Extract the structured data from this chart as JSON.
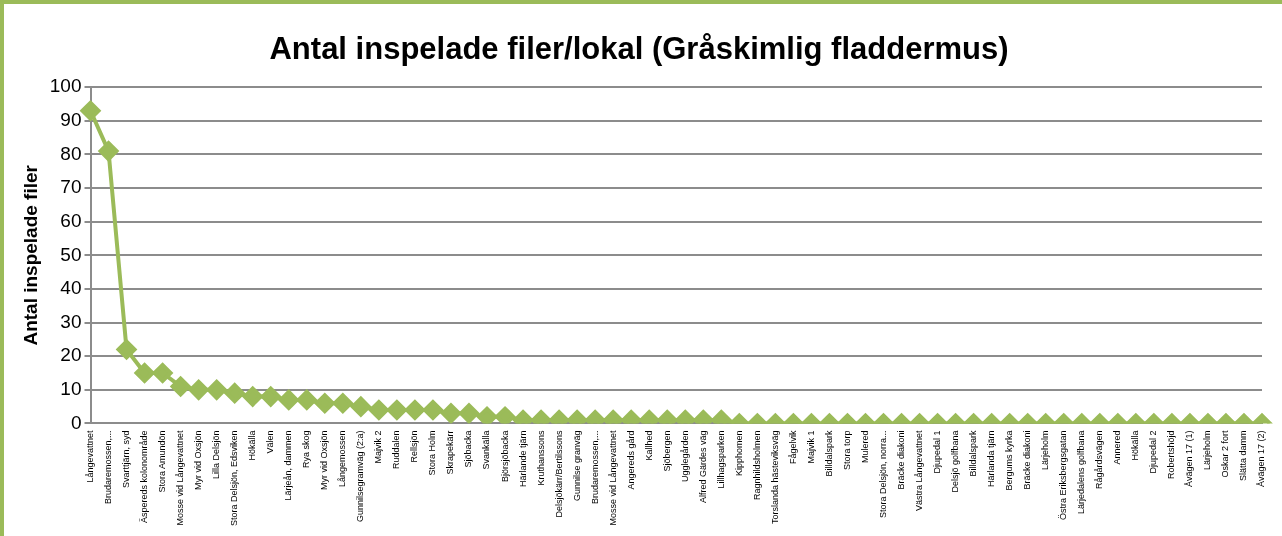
{
  "chart_data": {
    "type": "line",
    "title": "Antal inspelade filer/lokal (Gråskimlig fladdermus)",
    "ylabel": "Antal inspelade filer",
    "categories": [
      "Långevattnet",
      "Brudaremossen,...",
      "Svarttjärn, syd",
      "Äspereds kolonområde",
      "Stora Amundön",
      "Mosse vid Långevattnet",
      "Myr vid Oxsjön",
      "Lilla Delsjön",
      "Stora Delsjön, Edsviken",
      "Hökälla",
      "Välen",
      "Lärjeån, dammen",
      "Rya skog",
      "Myr vid Oxsjön",
      "Långemossen",
      "Gunnilsegramväg (2:a)",
      "Majvik 2",
      "Ruddalen",
      "Rellsjön",
      "Stora Holm",
      "Skrapekärr",
      "Sjöbacka",
      "Svankälla",
      "Björsjöbacka",
      "Härlande tjärn",
      "Kruthanssons",
      "Delsjökärr/Bertilssons",
      "Gunnilse granväg",
      "Brudaremossen,...",
      "Mosse vid Långevattnet",
      "Angereds gård",
      "Kallhed",
      "Sjöbergen",
      "Ugglegården",
      "Alfred Gärdes väg",
      "Lillhagsparken",
      "Kipphomen",
      "Ragnhildsholmen",
      "Torslanda hästeviksväg",
      "Fågelvik",
      "Majvik 1",
      "Billdalspark",
      "Stora torp",
      "Mulered",
      "Stora Delsjön, norra...",
      "Bräcke diakoni",
      "Västra Långevattnet",
      "Djupedal 1",
      "Delsjö golfbana",
      "Billdalspark",
      "Härlanda tjärn",
      "Bergums kyrka",
      "Bräcke diakoni",
      "Lärjeholm",
      "Östra Eriksbergsgatan",
      "Lärjedalens golfbana",
      "Rågårdsvägen",
      "Annered",
      "Hökälla",
      "Djupedal 2",
      "Robertshöjd",
      "Åvägen 17 (1)",
      "Lärjeholm",
      "Oskar 2 fort",
      "Slätta damm",
      "Åvägen 17 (2)"
    ],
    "series": [
      {
        "color": "#9bbb59",
        "values": [
          93,
          81,
          22,
          15,
          15,
          11,
          10,
          10,
          9,
          8,
          8,
          7,
          7,
          6,
          6,
          5,
          4,
          4,
          4,
          4,
          3,
          3,
          2,
          2,
          1,
          1,
          1,
          1,
          1,
          1,
          1,
          1,
          1,
          1,
          1,
          1,
          0,
          0,
          0,
          0,
          0,
          0,
          0,
          0,
          0,
          0,
          0,
          0,
          0,
          0,
          0,
          0,
          0,
          0,
          0,
          0,
          0,
          0,
          0,
          0,
          0,
          0,
          0,
          0,
          0,
          0
        ]
      }
    ],
    "ylim": [
      0,
      100
    ],
    "yticks": [
      0,
      10,
      20,
      30,
      40,
      50,
      60,
      70,
      80,
      90,
      100
    ],
    "grid": "y",
    "legend": false,
    "marker": "diamond",
    "line_style": "solid"
  }
}
